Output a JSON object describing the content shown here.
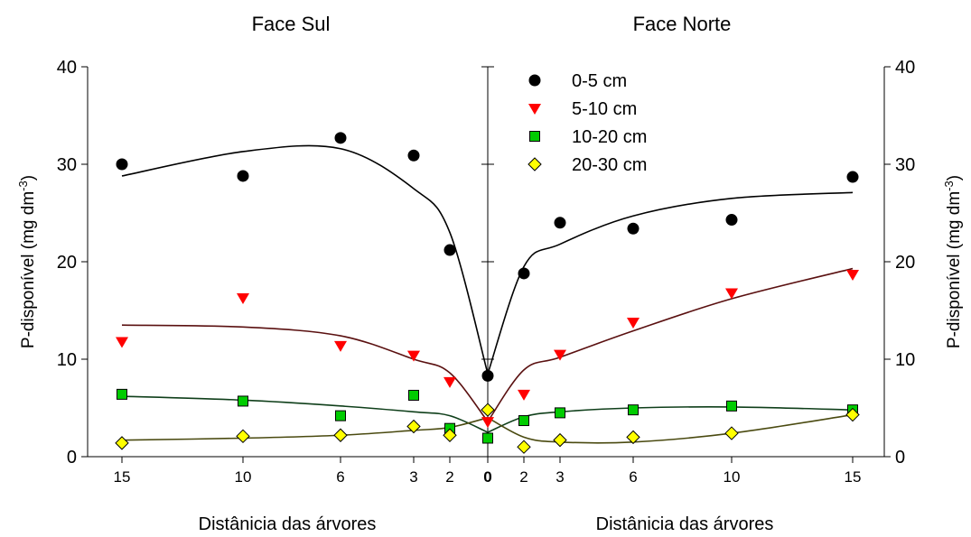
{
  "chart_data": {
    "type": "scatter",
    "titles": {
      "left": "Face Sul",
      "right": "Face Norte"
    },
    "ylabel": {
      "prefix": "P-disponível (mg dm",
      "sup": "-3",
      "suffix": ")"
    },
    "xlabel": "Distânicia das árvores",
    "ylim": [
      0,
      40
    ],
    "yticks": [
      0,
      10,
      20,
      30,
      40
    ],
    "x_categories": [
      15,
      10,
      6,
      3,
      2,
      0,
      2,
      3,
      6,
      10,
      15
    ],
    "grid": false,
    "legend_position": "top, right of center axis",
    "series": [
      {
        "name": "0-5 cm",
        "marker": "circle",
        "color": "#000000",
        "values": [
          30.0,
          28.8,
          32.7,
          30.9,
          21.2,
          8.3,
          18.8,
          24.0,
          23.4,
          24.3,
          28.7
        ],
        "fit": [
          [
            28.8,
            31.3,
            31.6,
            27.5,
            23.0,
            8.5
          ],
          [
            8.5,
            19.5,
            21.8,
            24.7,
            26.5,
            27.1
          ]
        ]
      },
      {
        "name": "5-10 cm",
        "marker": "triangle-down",
        "color": "#ff0000",
        "values": [
          11.8,
          16.3,
          11.4,
          10.4,
          7.7,
          3.6,
          6.4,
          10.5,
          13.8,
          16.8,
          18.7
        ],
        "fit": [
          [
            13.5,
            13.3,
            12.4,
            10.0,
            8.6,
            3.6
          ],
          [
            3.6,
            8.9,
            10.2,
            12.9,
            16.2,
            19.3
          ]
        ]
      },
      {
        "name": "10-20 cm",
        "marker": "square",
        "color": "#00cc00",
        "values": [
          6.4,
          5.7,
          4.2,
          6.3,
          2.9,
          1.9,
          3.7,
          4.5,
          4.8,
          5.2,
          4.8
        ],
        "fit": [
          [
            6.2,
            5.8,
            5.2,
            4.6,
            4.2,
            2.5
          ],
          [
            2.5,
            4.1,
            4.6,
            5.0,
            5.1,
            4.8
          ]
        ]
      },
      {
        "name": "20-30 cm",
        "marker": "diamond",
        "color": "#ffff00",
        "values": [
          1.4,
          2.1,
          2.2,
          3.1,
          2.2,
          4.8,
          1.0,
          1.7,
          2.0,
          2.4,
          4.3
        ],
        "fit": [
          [
            1.7,
            1.9,
            2.2,
            2.7,
            3.0,
            4.0
          ],
          [
            4.0,
            2.0,
            1.5,
            1.5,
            2.4,
            4.3
          ]
        ]
      }
    ]
  }
}
